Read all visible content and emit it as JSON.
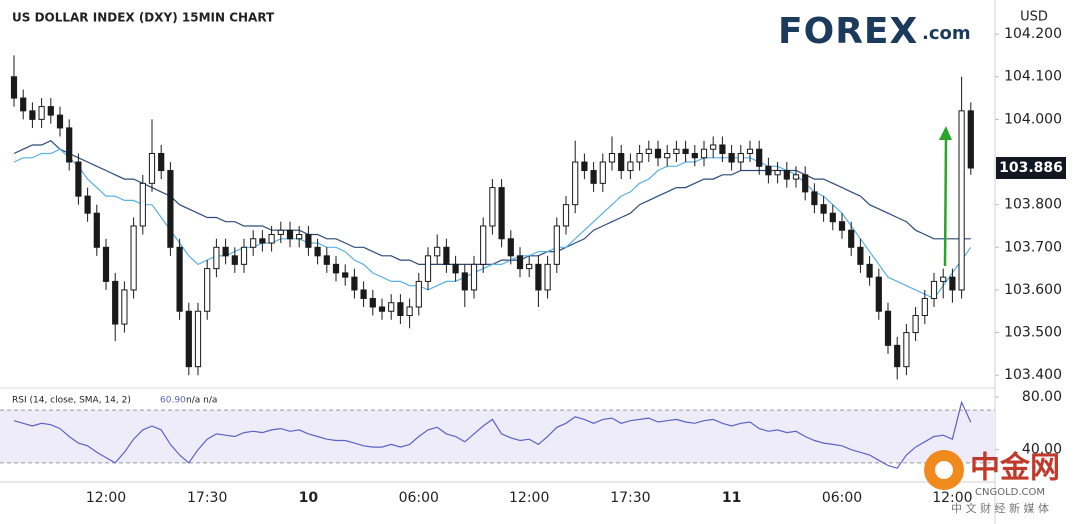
{
  "chart_data": [
    {
      "type": "candlestick",
      "title": "US DOLLAR INDEX (DXY) 15MIN CHART",
      "y_unit": "USD",
      "categories": [
        null,
        null,
        null,
        null,
        null,
        null,
        null,
        null,
        null,
        null,
        "12:00",
        null,
        null,
        null,
        null,
        null,
        null,
        null,
        null,
        null,
        null,
        "17:30",
        null,
        null,
        null,
        null,
        null,
        null,
        null,
        null,
        null,
        null,
        "10",
        null,
        null,
        null,
        null,
        null,
        null,
        null,
        null,
        null,
        null,
        null,
        "06:00",
        null,
        null,
        null,
        null,
        null,
        null,
        null,
        null,
        null,
        null,
        null,
        "12:00",
        null,
        null,
        null,
        null,
        null,
        null,
        null,
        null,
        null,
        null,
        "17:30",
        null,
        null,
        null,
        null,
        null,
        null,
        null,
        null,
        null,
        null,
        "11",
        null,
        null,
        null,
        null,
        null,
        null,
        null,
        null,
        null,
        null,
        null,
        "06:00",
        null,
        null,
        null,
        null,
        null,
        null,
        null,
        null,
        null,
        null,
        null,
        "12:00",
        null,
        null
      ],
      "open": [
        104.1,
        104.05,
        104.02,
        104.0,
        104.03,
        104.01,
        103.98,
        103.9,
        103.82,
        103.78,
        103.7,
        103.62,
        103.52,
        103.6,
        103.75,
        103.85,
        103.92,
        103.88,
        103.7,
        103.55,
        103.42,
        103.55,
        103.65,
        103.7,
        103.68,
        103.66,
        103.7,
        103.72,
        103.71,
        103.73,
        103.74,
        103.72,
        103.73,
        103.7,
        103.68,
        103.66,
        103.64,
        103.63,
        103.6,
        103.58,
        103.56,
        103.55,
        103.57,
        103.54,
        103.56,
        103.62,
        103.68,
        103.7,
        103.66,
        103.64,
        103.6,
        103.66,
        103.75,
        103.84,
        103.72,
        103.68,
        103.65,
        103.66,
        103.6,
        103.66,
        103.75,
        103.8,
        103.9,
        103.88,
        103.85,
        103.9,
        103.92,
        103.88,
        103.9,
        103.92,
        103.93,
        103.91,
        103.92,
        103.93,
        103.92,
        103.91,
        103.93,
        103.94,
        103.92,
        103.9,
        103.92,
        103.93,
        103.89,
        103.87,
        103.88,
        103.86,
        103.87,
        103.83,
        103.8,
        103.78,
        103.76,
        103.74,
        103.7,
        103.66,
        103.63,
        103.55,
        103.47,
        103.42,
        103.5,
        103.54,
        103.58,
        103.62,
        103.63,
        103.6,
        104.02
      ],
      "high": [
        104.15,
        104.07,
        104.04,
        104.05,
        104.05,
        104.03,
        104.0,
        103.92,
        103.84,
        103.8,
        103.72,
        103.64,
        103.62,
        103.77,
        103.87,
        104.0,
        103.94,
        103.9,
        103.72,
        103.57,
        103.57,
        103.67,
        103.72,
        103.72,
        103.7,
        103.72,
        103.74,
        103.74,
        103.75,
        103.76,
        103.76,
        103.75,
        103.75,
        103.72,
        103.7,
        103.68,
        103.66,
        103.65,
        103.62,
        103.6,
        103.58,
        103.59,
        103.59,
        103.58,
        103.64,
        103.7,
        103.73,
        103.72,
        103.68,
        103.66,
        103.68,
        103.77,
        103.86,
        103.86,
        103.74,
        103.7,
        103.68,
        103.68,
        103.68,
        103.77,
        103.82,
        103.95,
        103.92,
        103.9,
        103.92,
        103.96,
        103.94,
        103.92,
        103.94,
        103.95,
        103.95,
        103.94,
        103.95,
        103.95,
        103.94,
        103.95,
        103.96,
        103.96,
        103.94,
        103.94,
        103.95,
        103.95,
        103.91,
        103.9,
        103.9,
        103.89,
        103.89,
        103.85,
        103.82,
        103.8,
        103.78,
        103.76,
        103.72,
        103.68,
        103.65,
        103.57,
        103.49,
        103.52,
        103.56,
        103.6,
        103.64,
        103.65,
        103.65,
        104.1,
        104.04
      ],
      "low": [
        104.03,
        104.0,
        103.98,
        103.98,
        103.99,
        103.96,
        103.88,
        103.8,
        103.76,
        103.68,
        103.6,
        103.48,
        103.5,
        103.58,
        103.73,
        103.83,
        103.86,
        103.68,
        103.53,
        103.4,
        103.4,
        103.53,
        103.63,
        103.66,
        103.64,
        103.64,
        103.68,
        103.69,
        103.69,
        103.71,
        103.7,
        103.7,
        103.68,
        103.66,
        103.64,
        103.62,
        103.61,
        103.58,
        103.56,
        103.54,
        103.53,
        103.53,
        103.52,
        103.51,
        103.54,
        103.6,
        103.66,
        103.64,
        103.62,
        103.56,
        103.58,
        103.64,
        103.73,
        103.7,
        103.66,
        103.63,
        103.63,
        103.56,
        103.58,
        103.64,
        103.73,
        103.78,
        103.86,
        103.83,
        103.83,
        103.88,
        103.86,
        103.86,
        103.88,
        103.9,
        103.89,
        103.89,
        103.9,
        103.9,
        103.89,
        103.89,
        103.91,
        103.9,
        103.88,
        103.88,
        103.9,
        103.87,
        103.85,
        103.85,
        103.84,
        103.84,
        103.81,
        103.78,
        103.76,
        103.74,
        103.72,
        103.68,
        103.64,
        103.61,
        103.53,
        103.45,
        103.39,
        103.4,
        103.48,
        103.52,
        103.56,
        103.58,
        103.57,
        103.58,
        103.87
      ],
      "close": [
        104.05,
        104.02,
        104.0,
        104.03,
        104.01,
        103.98,
        103.9,
        103.82,
        103.78,
        103.7,
        103.62,
        103.52,
        103.6,
        103.75,
        103.85,
        103.92,
        103.88,
        103.7,
        103.55,
        103.42,
        103.55,
        103.65,
        103.7,
        103.68,
        103.66,
        103.7,
        103.72,
        103.71,
        103.73,
        103.74,
        103.72,
        103.73,
        103.7,
        103.68,
        103.66,
        103.64,
        103.63,
        103.6,
        103.58,
        103.56,
        103.55,
        103.57,
        103.54,
        103.56,
        103.62,
        103.68,
        103.7,
        103.66,
        103.64,
        103.6,
        103.66,
        103.75,
        103.84,
        103.72,
        103.68,
        103.65,
        103.66,
        103.6,
        103.66,
        103.75,
        103.8,
        103.9,
        103.88,
        103.85,
        103.9,
        103.92,
        103.88,
        103.9,
        103.92,
        103.93,
        103.91,
        103.92,
        103.93,
        103.92,
        103.91,
        103.93,
        103.94,
        103.92,
        103.9,
        103.92,
        103.93,
        103.89,
        103.87,
        103.88,
        103.86,
        103.87,
        103.83,
        103.8,
        103.78,
        103.76,
        103.74,
        103.7,
        103.66,
        103.63,
        103.55,
        103.47,
        103.42,
        103.5,
        103.54,
        103.58,
        103.62,
        103.63,
        103.6,
        104.02,
        103.886
      ],
      "up_color": "#ffffff",
      "down_color": "#1a1a1a",
      "wick_color": "#1a1a1a",
      "lines": [
        {
          "color": "#2c4a7c",
          "values": [
            103.92,
            103.93,
            103.94,
            103.94,
            103.95,
            103.93,
            103.92,
            103.91,
            103.9,
            103.89,
            103.88,
            103.87,
            103.86,
            103.86,
            103.85,
            103.84,
            103.83,
            103.82,
            103.8,
            103.79,
            103.78,
            103.77,
            103.77,
            103.76,
            103.76,
            103.75,
            103.75,
            103.75,
            103.74,
            103.74,
            103.74,
            103.74,
            103.73,
            103.73,
            103.72,
            103.72,
            103.71,
            103.7,
            103.7,
            103.69,
            103.68,
            103.68,
            103.67,
            103.67,
            103.66,
            103.66,
            103.66,
            103.66,
            103.66,
            103.66,
            103.66,
            103.66,
            103.66,
            103.67,
            103.67,
            103.67,
            103.68,
            103.68,
            103.69,
            103.69,
            103.7,
            103.71,
            103.72,
            103.74,
            103.75,
            103.76,
            103.77,
            103.78,
            103.8,
            103.81,
            103.82,
            103.83,
            103.84,
            103.84,
            103.85,
            103.86,
            103.86,
            103.87,
            103.87,
            103.88,
            103.88,
            103.88,
            103.88,
            103.88,
            103.88,
            103.88,
            103.87,
            103.86,
            103.86,
            103.85,
            103.84,
            103.83,
            103.82,
            103.8,
            103.79,
            103.78,
            103.77,
            103.76,
            103.74,
            103.73,
            103.72,
            103.72,
            103.72,
            103.72,
            103.72
          ]
        },
        {
          "color": "#5ab0e8",
          "values": [
            103.9,
            103.91,
            103.91,
            103.92,
            103.92,
            103.93,
            103.91,
            103.89,
            103.86,
            103.84,
            103.82,
            103.82,
            103.81,
            103.81,
            103.8,
            103.8,
            103.77,
            103.74,
            103.71,
            103.68,
            103.66,
            103.67,
            103.68,
            103.68,
            103.69,
            103.7,
            103.7,
            103.71,
            103.71,
            103.72,
            103.72,
            103.72,
            103.71,
            103.71,
            103.7,
            103.7,
            103.69,
            103.67,
            103.66,
            103.64,
            103.63,
            103.62,
            103.62,
            103.61,
            103.61,
            103.6,
            103.61,
            103.62,
            103.62,
            103.63,
            103.64,
            103.65,
            103.66,
            103.66,
            103.67,
            103.68,
            103.68,
            103.69,
            103.69,
            103.7,
            103.7,
            103.72,
            103.74,
            103.76,
            103.78,
            103.8,
            103.82,
            103.83,
            103.85,
            103.86,
            103.88,
            103.89,
            103.89,
            103.9,
            103.9,
            103.91,
            103.91,
            103.91,
            103.91,
            103.91,
            103.91,
            103.9,
            103.89,
            103.89,
            103.88,
            103.87,
            103.85,
            103.83,
            103.82,
            103.8,
            103.78,
            103.75,
            103.72,
            103.69,
            103.66,
            103.63,
            103.62,
            103.61,
            103.6,
            103.59,
            103.58,
            103.61,
            103.64,
            103.67,
            103.7
          ]
        }
      ],
      "ylim": [
        103.37,
        104.28
      ],
      "yticks": [
        {
          "value": 103.4,
          "label": "103.400"
        },
        {
          "value": 103.5,
          "label": "103.500"
        },
        {
          "value": 103.6,
          "label": "103.600"
        },
        {
          "value": 103.7,
          "label": "103.700"
        },
        {
          "value": 103.8,
          "label": "103.800"
        },
        {
          "value": 104.0,
          "label": "104.000"
        },
        {
          "value": 104.1,
          "label": "104.100"
        },
        {
          "value": 104.2,
          "label": "104.200"
        }
      ],
      "last_price": {
        "value": 103.886,
        "label": "103.886"
      },
      "grid": false
    },
    {
      "type": "line",
      "title": "RSI (14, close, SMA, 14, 2)",
      "current": "60.90",
      "extra": "n/a  n/a",
      "color": "#5b63c4",
      "values": [
        62,
        60,
        58,
        60,
        59,
        56,
        50,
        45,
        43,
        38,
        34,
        30,
        38,
        48,
        55,
        58,
        55,
        44,
        36,
        30,
        40,
        48,
        52,
        51,
        50,
        53,
        54,
        53,
        55,
        56,
        54,
        55,
        52,
        50,
        48,
        47,
        47,
        45,
        43,
        42,
        42,
        44,
        42,
        44,
        50,
        55,
        57,
        52,
        50,
        46,
        52,
        58,
        63,
        52,
        49,
        47,
        48,
        44,
        50,
        57,
        60,
        65,
        63,
        60,
        63,
        64,
        60,
        62,
        63,
        64,
        61,
        62,
        63,
        61,
        60,
        62,
        63,
        60,
        58,
        60,
        61,
        56,
        54,
        55,
        53,
        54,
        50,
        47,
        45,
        44,
        43,
        40,
        38,
        36,
        32,
        28,
        26,
        36,
        42,
        46,
        50,
        51,
        48,
        76,
        60.9
      ],
      "band": [
        30,
        70
      ],
      "band_color": "#efecfa",
      "ylim": [
        15.5,
        85.3
      ],
      "yticks": [
        {
          "value": 40,
          "label": "40.00"
        },
        {
          "value": 80,
          "label": "80.00"
        }
      ]
    }
  ],
  "logo": {
    "main": "FOREX",
    "suffix": ".com"
  },
  "watermark": {
    "title": "中金网",
    "subtitle": "CNGOLD.COM",
    "tagline": "中 文 财 经 新 媒 体"
  }
}
